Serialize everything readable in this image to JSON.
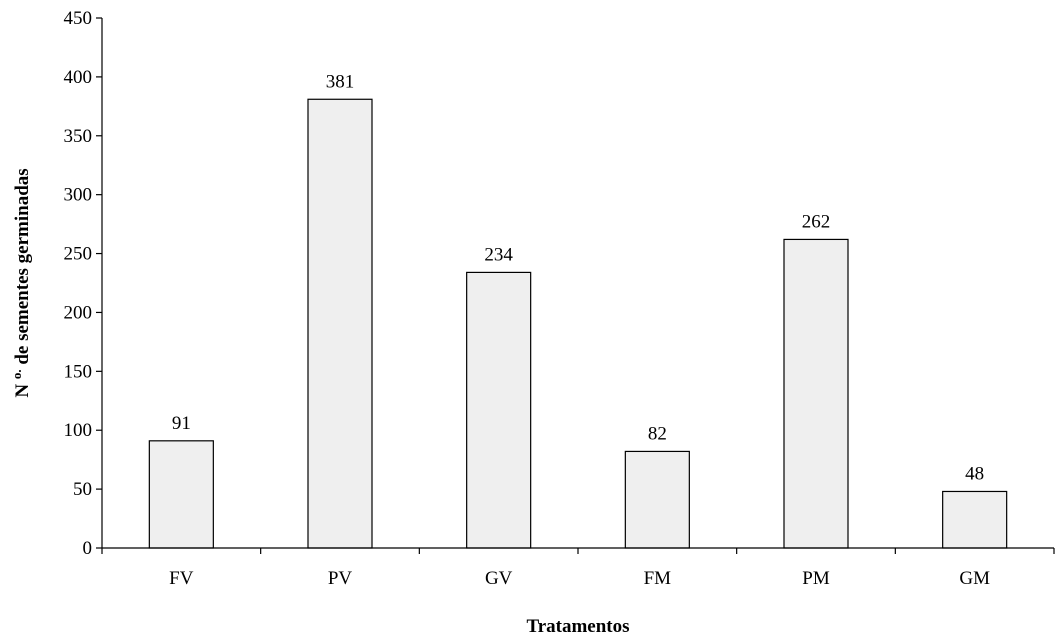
{
  "chart_data": {
    "type": "bar",
    "categories": [
      "FV",
      "PV",
      "GV",
      "FM",
      "PM",
      "GM"
    ],
    "values": [
      91,
      381,
      234,
      82,
      262,
      48
    ],
    "data_labels": [
      "91",
      "381",
      "234",
      "82",
      "262",
      "48"
    ],
    "xlabel": "Tratamentos",
    "ylabel_main": "N",
    "ylabel_sup": "o.",
    "ylabel_rest": " de sementes germinadas",
    "ylim": [
      0,
      450
    ],
    "yticks": [
      0,
      50,
      100,
      150,
      200,
      250,
      300,
      350,
      400,
      450
    ],
    "ytick_labels": [
      "0",
      "50",
      "100",
      "150",
      "200",
      "250",
      "300",
      "350",
      "400",
      "450"
    ],
    "grid": false,
    "legend": "none",
    "bar_color": "#efefef",
    "edge_color": "#000000"
  }
}
